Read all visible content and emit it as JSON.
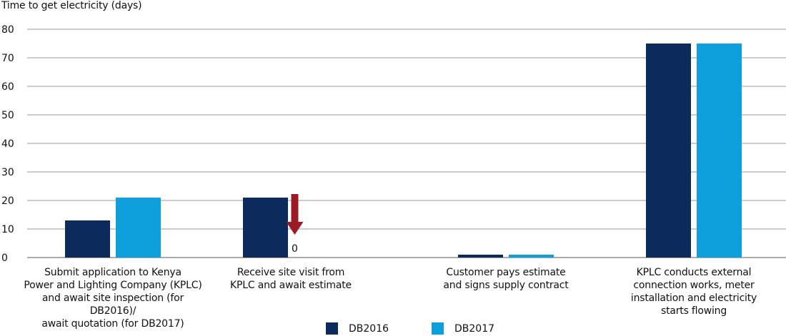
{
  "chart_data": {
    "type": "bar",
    "ylabel": "Time to get electricity (days)",
    "ylim": [
      0,
      80
    ],
    "yticks": [
      "0",
      "10",
      "20",
      "30",
      "40",
      "50",
      "60",
      "70",
      "80"
    ],
    "grid": true,
    "categories": [
      "Submit application to Kenya Power and Lighting Company (KPLC) and await site inspection (for DB2016)/ await quotation (for DB2017)",
      "Receive site visit from KPLC and await estimate",
      "Customer pays estimate and signs supply contract",
      "KPLC conducts external connection works, meter installation and electricity starts flowing"
    ],
    "category_lines": [
      [
        "Submit application to Kenya",
        "Power and Lighting Company (KPLC)",
        "and await site inspection (for DB2016)/",
        "await quotation (for DB2017)"
      ],
      [
        "Receive site visit from",
        "KPLC and await estimate"
      ],
      [
        "Customer pays estimate",
        "and signs supply contract"
      ],
      [
        "KPLC conducts external",
        "connection works, meter",
        "installation and electricity",
        "starts flowing"
      ]
    ],
    "series": [
      {
        "name": "DB2016",
        "color": "#0c2b5c",
        "values": [
          13,
          21,
          1,
          75
        ]
      },
      {
        "name": "DB2017",
        "color": "#0ea0dc",
        "values": [
          21,
          0,
          1,
          75
        ]
      }
    ],
    "annotations": [
      {
        "category_index": 1,
        "type": "down-arrow",
        "label": "0",
        "color": "#9b1b25"
      }
    ],
    "legend_position": "bottom-center"
  }
}
